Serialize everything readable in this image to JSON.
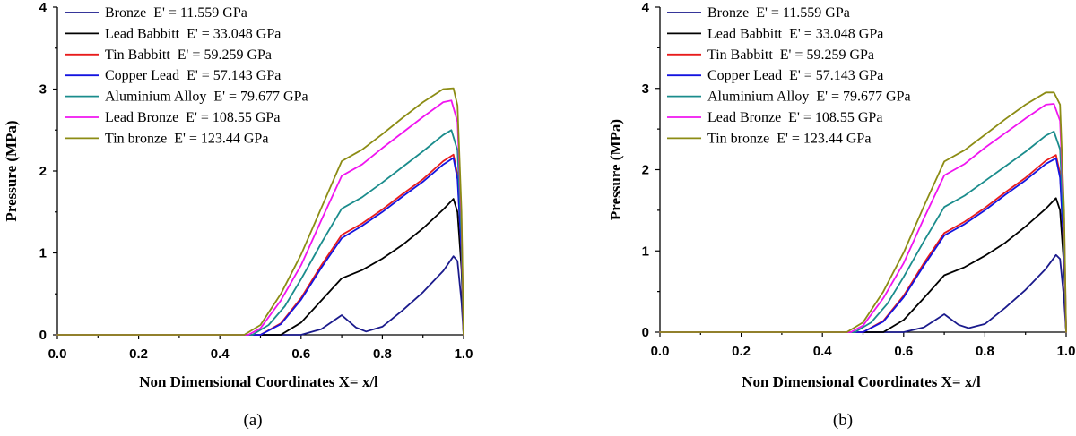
{
  "chart_data": [
    {
      "type": "line",
      "panel_label": "(a)",
      "xlabel": "Non Dimensional Coordinates X= x/l",
      "ylabel": "Pressure (MPa)",
      "xlim": [
        0.0,
        1.0
      ],
      "ylim": [
        0,
        4
      ],
      "xticks": [
        "0.0",
        "0.2",
        "0.4",
        "0.6",
        "0.8",
        "1.0"
      ],
      "yticks": [
        "0",
        "1",
        "2",
        "3",
        "4"
      ],
      "legend_position": "top-left",
      "grid": false,
      "series": [
        {
          "name": "Bronze  E' = 11.559 GPa",
          "color": "#1a1a8c",
          "points": [
            [
              0,
              0
            ],
            [
              0.6,
              0
            ],
            [
              0.65,
              0.07
            ],
            [
              0.7,
              0.24
            ],
            [
              0.735,
              0.09
            ],
            [
              0.76,
              0.04
            ],
            [
              0.8,
              0.1
            ],
            [
              0.85,
              0.3
            ],
            [
              0.9,
              0.52
            ],
            [
              0.95,
              0.78
            ],
            [
              0.975,
              0.96
            ],
            [
              0.985,
              0.9
            ],
            [
              0.995,
              0.4
            ],
            [
              1.0,
              0
            ]
          ]
        },
        {
          "name": "Lead Babbitt  E' = 33.048 GPa",
          "color": "#000000",
          "points": [
            [
              0,
              0
            ],
            [
              0.55,
              0
            ],
            [
              0.6,
              0.15
            ],
            [
              0.65,
              0.42
            ],
            [
              0.7,
              0.69
            ],
            [
              0.75,
              0.79
            ],
            [
              0.8,
              0.93
            ],
            [
              0.85,
              1.1
            ],
            [
              0.9,
              1.3
            ],
            [
              0.95,
              1.53
            ],
            [
              0.975,
              1.66
            ],
            [
              0.985,
              1.5
            ],
            [
              0.995,
              0.8
            ],
            [
              1.0,
              0
            ]
          ]
        },
        {
          "name": "Tin Babbitt  E' = 59.259 GPa",
          "color": "#e81c1c",
          "points": [
            [
              0,
              0
            ],
            [
              0.5,
              0
            ],
            [
              0.55,
              0.14
            ],
            [
              0.6,
              0.45
            ],
            [
              0.65,
              0.85
            ],
            [
              0.7,
              1.22
            ],
            [
              0.75,
              1.36
            ],
            [
              0.8,
              1.53
            ],
            [
              0.85,
              1.72
            ],
            [
              0.9,
              1.9
            ],
            [
              0.95,
              2.12
            ],
            [
              0.975,
              2.2
            ],
            [
              0.985,
              1.95
            ],
            [
              0.995,
              1.0
            ],
            [
              1.0,
              0
            ]
          ]
        },
        {
          "name": "Copper Lead  E' = 57.143 GPa",
          "color": "#1414e0",
          "points": [
            [
              0,
              0
            ],
            [
              0.5,
              0
            ],
            [
              0.55,
              0.13
            ],
            [
              0.6,
              0.43
            ],
            [
              0.65,
              0.82
            ],
            [
              0.7,
              1.18
            ],
            [
              0.75,
              1.33
            ],
            [
              0.8,
              1.5
            ],
            [
              0.85,
              1.69
            ],
            [
              0.9,
              1.87
            ],
            [
              0.95,
              2.08
            ],
            [
              0.975,
              2.16
            ],
            [
              0.985,
              1.9
            ],
            [
              0.995,
              1.0
            ],
            [
              1.0,
              0
            ]
          ]
        },
        {
          "name": "Aluminium Alloy  E' = 79.677 GPa",
          "color": "#1a8c8c",
          "points": [
            [
              0,
              0
            ],
            [
              0.48,
              0
            ],
            [
              0.52,
              0.12
            ],
            [
              0.56,
              0.35
            ],
            [
              0.6,
              0.68
            ],
            [
              0.65,
              1.12
            ],
            [
              0.7,
              1.54
            ],
            [
              0.75,
              1.68
            ],
            [
              0.8,
              1.86
            ],
            [
              0.85,
              2.05
            ],
            [
              0.9,
              2.24
            ],
            [
              0.95,
              2.44
            ],
            [
              0.97,
              2.5
            ],
            [
              0.985,
              2.25
            ],
            [
              0.995,
              1.2
            ],
            [
              1.0,
              0
            ]
          ]
        },
        {
          "name": "Lead Bronze  E' = 108.55 GPa",
          "color": "#f014f0",
          "points": [
            [
              0,
              0
            ],
            [
              0.47,
              0
            ],
            [
              0.5,
              0.08
            ],
            [
              0.55,
              0.42
            ],
            [
              0.6,
              0.85
            ],
            [
              0.65,
              1.4
            ],
            [
              0.7,
              1.94
            ],
            [
              0.75,
              2.08
            ],
            [
              0.8,
              2.28
            ],
            [
              0.85,
              2.47
            ],
            [
              0.9,
              2.66
            ],
            [
              0.95,
              2.84
            ],
            [
              0.97,
              2.86
            ],
            [
              0.985,
              2.6
            ],
            [
              0.995,
              1.4
            ],
            [
              1.0,
              0
            ]
          ]
        },
        {
          "name": "Tin bronze  E' = 123.44 GPa",
          "color": "#8c8c14",
          "points": [
            [
              0,
              0
            ],
            [
              0.46,
              0
            ],
            [
              0.5,
              0.12
            ],
            [
              0.55,
              0.5
            ],
            [
              0.6,
              0.98
            ],
            [
              0.65,
              1.55
            ],
            [
              0.7,
              2.12
            ],
            [
              0.75,
              2.26
            ],
            [
              0.8,
              2.45
            ],
            [
              0.85,
              2.65
            ],
            [
              0.9,
              2.84
            ],
            [
              0.95,
              3.0
            ],
            [
              0.975,
              3.01
            ],
            [
              0.985,
              2.8
            ],
            [
              0.995,
              1.5
            ],
            [
              1.0,
              0
            ]
          ]
        }
      ]
    },
    {
      "type": "line",
      "panel_label": "(b)",
      "xlabel": "Non Dimensional Coordinates X= x/l",
      "ylabel": "Pressure (MPa)",
      "xlim": [
        0.0,
        1.0
      ],
      "ylim": [
        0,
        4
      ],
      "xticks": [
        "0.0",
        "0.2",
        "0.4",
        "0.6",
        "0.8",
        "1.0"
      ],
      "yticks": [
        "0",
        "1",
        "2",
        "3",
        "4"
      ],
      "legend_position": "top-left",
      "grid": false,
      "series": [
        {
          "name": "Bronze  E' = 11.559 GPa",
          "color": "#1a1a8c",
          "points": [
            [
              0,
              0
            ],
            [
              0.6,
              0
            ],
            [
              0.65,
              0.06
            ],
            [
              0.7,
              0.22
            ],
            [
              0.735,
              0.09
            ],
            [
              0.76,
              0.05
            ],
            [
              0.8,
              0.1
            ],
            [
              0.85,
              0.3
            ],
            [
              0.9,
              0.52
            ],
            [
              0.95,
              0.78
            ],
            [
              0.975,
              0.95
            ],
            [
              0.985,
              0.9
            ],
            [
              0.995,
              0.4
            ],
            [
              1.0,
              0
            ]
          ]
        },
        {
          "name": "Lead Babbitt  E' = 33.048 GPa",
          "color": "#000000",
          "points": [
            [
              0,
              0
            ],
            [
              0.55,
              0
            ],
            [
              0.6,
              0.15
            ],
            [
              0.65,
              0.42
            ],
            [
              0.7,
              0.7
            ],
            [
              0.75,
              0.8
            ],
            [
              0.8,
              0.94
            ],
            [
              0.85,
              1.1
            ],
            [
              0.9,
              1.3
            ],
            [
              0.95,
              1.52
            ],
            [
              0.975,
              1.65
            ],
            [
              0.985,
              1.5
            ],
            [
              0.995,
              0.8
            ],
            [
              1.0,
              0
            ]
          ]
        },
        {
          "name": "Tin Babbitt  E' = 59.259 GPa",
          "color": "#e81c1c",
          "points": [
            [
              0,
              0
            ],
            [
              0.5,
              0
            ],
            [
              0.55,
              0.14
            ],
            [
              0.6,
              0.45
            ],
            [
              0.65,
              0.85
            ],
            [
              0.7,
              1.22
            ],
            [
              0.75,
              1.36
            ],
            [
              0.8,
              1.53
            ],
            [
              0.85,
              1.72
            ],
            [
              0.9,
              1.9
            ],
            [
              0.95,
              2.11
            ],
            [
              0.975,
              2.18
            ],
            [
              0.985,
              1.95
            ],
            [
              0.995,
              1.0
            ],
            [
              1.0,
              0
            ]
          ]
        },
        {
          "name": "Copper Lead  E' = 57.143 GPa",
          "color": "#1414e0",
          "points": [
            [
              0,
              0
            ],
            [
              0.5,
              0
            ],
            [
              0.55,
              0.13
            ],
            [
              0.6,
              0.43
            ],
            [
              0.65,
              0.82
            ],
            [
              0.7,
              1.19
            ],
            [
              0.75,
              1.33
            ],
            [
              0.8,
              1.5
            ],
            [
              0.85,
              1.69
            ],
            [
              0.9,
              1.87
            ],
            [
              0.95,
              2.07
            ],
            [
              0.975,
              2.14
            ],
            [
              0.985,
              1.9
            ],
            [
              0.995,
              1.0
            ],
            [
              1.0,
              0
            ]
          ]
        },
        {
          "name": "Aluminium Alloy  E' = 79.677 GPa",
          "color": "#1a8c8c",
          "points": [
            [
              0,
              0
            ],
            [
              0.48,
              0
            ],
            [
              0.52,
              0.12
            ],
            [
              0.56,
              0.35
            ],
            [
              0.6,
              0.68
            ],
            [
              0.65,
              1.12
            ],
            [
              0.7,
              1.54
            ],
            [
              0.75,
              1.68
            ],
            [
              0.8,
              1.86
            ],
            [
              0.85,
              2.04
            ],
            [
              0.9,
              2.22
            ],
            [
              0.95,
              2.42
            ],
            [
              0.97,
              2.47
            ],
            [
              0.985,
              2.25
            ],
            [
              0.995,
              1.2
            ],
            [
              1.0,
              0
            ]
          ]
        },
        {
          "name": "Lead Bronze  E' = 108.55 GPa",
          "color": "#f014f0",
          "points": [
            [
              0,
              0
            ],
            [
              0.47,
              0
            ],
            [
              0.5,
              0.08
            ],
            [
              0.55,
              0.42
            ],
            [
              0.6,
              0.85
            ],
            [
              0.65,
              1.4
            ],
            [
              0.7,
              1.93
            ],
            [
              0.75,
              2.07
            ],
            [
              0.8,
              2.27
            ],
            [
              0.85,
              2.45
            ],
            [
              0.9,
              2.63
            ],
            [
              0.95,
              2.8
            ],
            [
              0.97,
              2.81
            ],
            [
              0.985,
              2.6
            ],
            [
              0.995,
              1.4
            ],
            [
              1.0,
              0
            ]
          ]
        },
        {
          "name": "Tin bronze  E' = 123.44 GPa",
          "color": "#8c8c14",
          "points": [
            [
              0,
              0
            ],
            [
              0.46,
              0
            ],
            [
              0.5,
              0.12
            ],
            [
              0.55,
              0.5
            ],
            [
              0.6,
              0.98
            ],
            [
              0.65,
              1.55
            ],
            [
              0.7,
              2.1
            ],
            [
              0.75,
              2.24
            ],
            [
              0.8,
              2.43
            ],
            [
              0.85,
              2.62
            ],
            [
              0.9,
              2.8
            ],
            [
              0.95,
              2.95
            ],
            [
              0.97,
              2.95
            ],
            [
              0.985,
              2.8
            ],
            [
              0.995,
              1.5
            ],
            [
              1.0,
              0
            ]
          ]
        }
      ]
    }
  ]
}
